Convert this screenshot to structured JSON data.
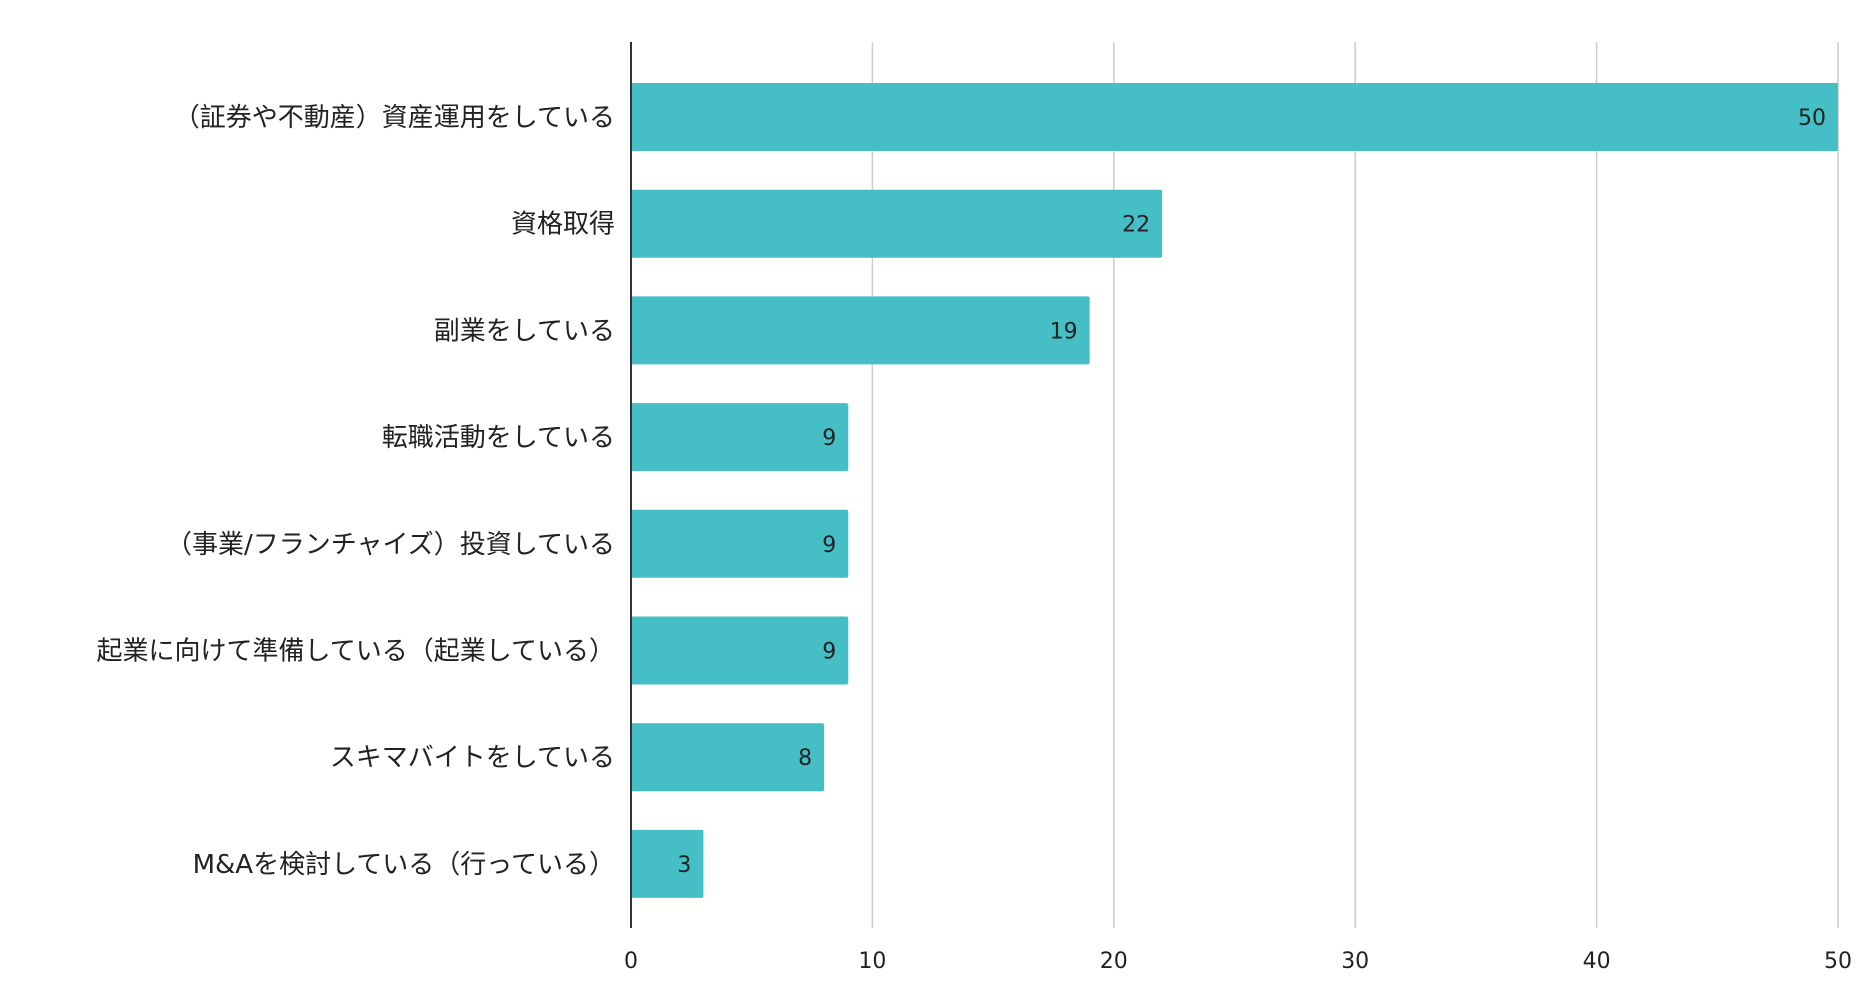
{
  "chart_data": {
    "type": "bar",
    "orientation": "horizontal",
    "title": "",
    "xlabel": "",
    "ylabel": "",
    "categories": [
      "（証券や不動産）資産運用をしている",
      "資格取得",
      "副業をしている",
      "転職活動をしている",
      "（事業/フランチャイズ）投資している",
      "起業に向けて準備している（起業している）",
      "スキマバイトをしている",
      "M&Aを検討している（行っている）"
    ],
    "values": [
      50,
      22,
      19,
      9,
      9,
      9,
      8,
      3
    ],
    "data_labels": [
      "50",
      "22",
      "19",
      "9",
      "9",
      "9",
      "8",
      "3"
    ],
    "xlim": [
      0,
      50
    ],
    "xticks": [
      0,
      10,
      20,
      30,
      40,
      50
    ],
    "xtick_labels": [
      "0",
      "10",
      "20",
      "30",
      "40",
      "50"
    ],
    "grid": true,
    "legend": "none",
    "colors": {
      "bar": "#45bec6",
      "grid": "#cccccc",
      "axis": "#333333",
      "text": "#222222"
    }
  }
}
